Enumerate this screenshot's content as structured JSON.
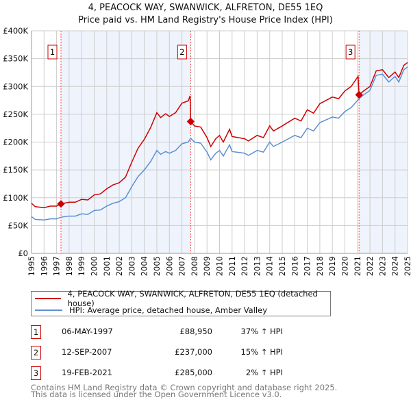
{
  "chart_data": {
    "type": "line",
    "title": "4, PEACOCK WAY, SWANWICK, ALFRETON, DE55 1EQ",
    "subtitle": "Price paid vs. HM Land Registry's House Price Index (HPI)",
    "xlim": [
      1995,
      2025
    ],
    "ylim": [
      0,
      400000
    ],
    "grid": true,
    "y_ticks": [
      {
        "v": 0,
        "l": "£0"
      },
      {
        "v": 50000,
        "l": "£50K"
      },
      {
        "v": 100000,
        "l": "£100K"
      },
      {
        "v": 150000,
        "l": "£150K"
      },
      {
        "v": 200000,
        "l": "£200K"
      },
      {
        "v": 250000,
        "l": "£250K"
      },
      {
        "v": 300000,
        "l": "£300K"
      },
      {
        "v": 350000,
        "l": "£350K"
      },
      {
        "v": 400000,
        "l": "£400K"
      }
    ],
    "x_ticks": [
      "1995",
      "1996",
      "1997",
      "1998",
      "1999",
      "2000",
      "2001",
      "2002",
      "2003",
      "2004",
      "2005",
      "2006",
      "2007",
      "2008",
      "2009",
      "2010",
      "2011",
      "2012",
      "2013",
      "2014",
      "2015",
      "2016",
      "2017",
      "2018",
      "2019",
      "2020",
      "2021",
      "2022",
      "2023",
      "2024",
      "2025"
    ],
    "shaded_ranges": [
      [
        1997.35,
        2007.7
      ],
      [
        2021.13,
        2025
      ]
    ],
    "series": [
      {
        "name": "4, PEACOCK WAY, SWANWICK, ALFRETON, DE55 1EQ (detached house)",
        "color": "#cc0000",
        "points": [
          [
            1995,
            90000
          ],
          [
            1995.3,
            84000
          ],
          [
            1996,
            82000
          ],
          [
            1996.5,
            85000
          ],
          [
            1997,
            85000
          ],
          [
            1997.35,
            89000
          ],
          [
            1998,
            92000
          ],
          [
            1998.5,
            92000
          ],
          [
            1999,
            97000
          ],
          [
            1999.5,
            96000
          ],
          [
            2000,
            105000
          ],
          [
            2000.5,
            107000
          ],
          [
            2001,
            116000
          ],
          [
            2001.5,
            123000
          ],
          [
            2002,
            127000
          ],
          [
            2002.5,
            137000
          ],
          [
            2003,
            164000
          ],
          [
            2003.5,
            189000
          ],
          [
            2004,
            205000
          ],
          [
            2004.5,
            226000
          ],
          [
            2005,
            253000
          ],
          [
            2005.3,
            244000
          ],
          [
            2005.7,
            251000
          ],
          [
            2006,
            246000
          ],
          [
            2006.5,
            253000
          ],
          [
            2007,
            270000
          ],
          [
            2007.5,
            274000
          ],
          [
            2007.65,
            283000
          ],
          [
            2007.7,
            237000
          ],
          [
            2008,
            229000
          ],
          [
            2008.5,
            227000
          ],
          [
            2009,
            208000
          ],
          [
            2009.3,
            192000
          ],
          [
            2009.7,
            206000
          ],
          [
            2010,
            212000
          ],
          [
            2010.3,
            200000
          ],
          [
            2010.8,
            223000
          ],
          [
            2011,
            210000
          ],
          [
            2012,
            206000
          ],
          [
            2012.3,
            202000
          ],
          [
            2013,
            212000
          ],
          [
            2013.5,
            208000
          ],
          [
            2014,
            229000
          ],
          [
            2014.3,
            220000
          ],
          [
            2015,
            229000
          ],
          [
            2016,
            243000
          ],
          [
            2016.5,
            238000
          ],
          [
            2017,
            258000
          ],
          [
            2017.5,
            252000
          ],
          [
            2018,
            269000
          ],
          [
            2019,
            281000
          ],
          [
            2019.5,
            278000
          ],
          [
            2020,
            292000
          ],
          [
            2020.5,
            300000
          ],
          [
            2021.05,
            318000
          ],
          [
            2021.13,
            285000
          ],
          [
            2021.5,
            292000
          ],
          [
            2022,
            300000
          ],
          [
            2022.5,
            328000
          ],
          [
            2023,
            330000
          ],
          [
            2023.5,
            316000
          ],
          [
            2024,
            326000
          ],
          [
            2024.3,
            316000
          ],
          [
            2024.7,
            338000
          ],
          [
            2025,
            343000
          ]
        ]
      },
      {
        "name": "HPI: Average price, detached house, Amber Valley",
        "color": "#5b8fd4",
        "points": [
          [
            1995,
            66000
          ],
          [
            1995.3,
            61000
          ],
          [
            1996,
            60000
          ],
          [
            1996.5,
            62000
          ],
          [
            1997,
            62000
          ],
          [
            1997.35,
            65000
          ],
          [
            1998,
            67000
          ],
          [
            1998.5,
            67000
          ],
          [
            1999,
            71000
          ],
          [
            1999.5,
            70000
          ],
          [
            2000,
            77000
          ],
          [
            2000.5,
            78000
          ],
          [
            2001,
            85000
          ],
          [
            2001.5,
            90000
          ],
          [
            2002,
            93000
          ],
          [
            2002.5,
            100000
          ],
          [
            2003,
            120000
          ],
          [
            2003.5,
            138000
          ],
          [
            2004,
            150000
          ],
          [
            2004.5,
            165000
          ],
          [
            2005,
            185000
          ],
          [
            2005.3,
            178000
          ],
          [
            2005.7,
            183000
          ],
          [
            2006,
            180000
          ],
          [
            2006.5,
            185000
          ],
          [
            2007,
            197000
          ],
          [
            2007.5,
            200000
          ],
          [
            2007.7,
            207000
          ],
          [
            2008,
            200000
          ],
          [
            2008.5,
            198000
          ],
          [
            2009,
            182000
          ],
          [
            2009.3,
            168000
          ],
          [
            2009.7,
            180000
          ],
          [
            2010,
            185000
          ],
          [
            2010.3,
            175000
          ],
          [
            2010.8,
            195000
          ],
          [
            2011,
            183000
          ],
          [
            2012,
            180000
          ],
          [
            2012.3,
            176000
          ],
          [
            2013,
            185000
          ],
          [
            2013.5,
            182000
          ],
          [
            2014,
            200000
          ],
          [
            2014.3,
            192000
          ],
          [
            2015,
            200000
          ],
          [
            2016,
            212000
          ],
          [
            2016.5,
            208000
          ],
          [
            2017,
            225000
          ],
          [
            2017.5,
            220000
          ],
          [
            2018,
            235000
          ],
          [
            2019,
            245000
          ],
          [
            2019.5,
            243000
          ],
          [
            2020,
            255000
          ],
          [
            2020.5,
            262000
          ],
          [
            2021.13,
            278000
          ],
          [
            2021.5,
            285000
          ],
          [
            2022,
            293000
          ],
          [
            2022.5,
            320000
          ],
          [
            2023,
            322000
          ],
          [
            2023.5,
            308000
          ],
          [
            2024,
            318000
          ],
          [
            2024.3,
            308000
          ],
          [
            2024.7,
            330000
          ],
          [
            2025,
            335000
          ]
        ]
      }
    ],
    "sales": [
      {
        "n": "1",
        "x": 1997.35,
        "y": 88950,
        "date": "06-MAY-1997",
        "price": "£88,950",
        "hpi": "37% ↑ HPI"
      },
      {
        "n": "2",
        "x": 2007.7,
        "y": 237000,
        "date": "12-SEP-2007",
        "price": "£237,000",
        "hpi": "15% ↑ HPI"
      },
      {
        "n": "3",
        "x": 2021.13,
        "y": 285000,
        "date": "19-FEB-2021",
        "price": "£285,000",
        "hpi": "2% ↑ HPI"
      }
    ]
  },
  "footer": {
    "line1": "Contains HM Land Registry data © Crown copyright and database right 2025.",
    "line2": "This data is licensed under the Open Government Licence v3.0."
  }
}
